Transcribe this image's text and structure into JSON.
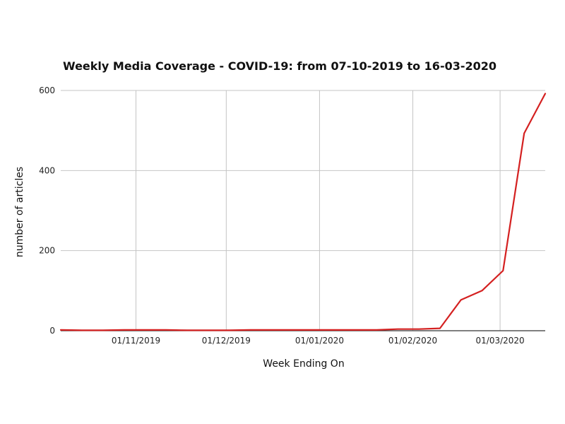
{
  "chart_data": {
    "type": "line",
    "title": "Weekly Media Coverage - COVID-19: from 07-10-2019 to 16-03-2020",
    "xlabel": "Week Ending On",
    "ylabel": "number of articles",
    "x_type": "date",
    "xlim": [
      "2019-10-07",
      "2020-03-16"
    ],
    "ylim": [
      0,
      600
    ],
    "y_ticks": [
      0,
      200,
      400,
      600
    ],
    "x_ticks": [
      "2019-11-01",
      "2019-12-01",
      "2020-01-01",
      "2020-02-01",
      "2020-03-01"
    ],
    "x_tick_labels": [
      "01/11/2019",
      "01/12/2019",
      "01/01/2020",
      "01/02/2020",
      "01/03/2020"
    ],
    "grid": true,
    "legend": "none",
    "series": [
      {
        "color": "#d42020",
        "x": [
          "2019-10-07",
          "2019-10-14",
          "2019-10-21",
          "2019-10-28",
          "2019-11-04",
          "2019-11-11",
          "2019-11-18",
          "2019-11-25",
          "2019-12-02",
          "2019-12-09",
          "2019-12-16",
          "2019-12-23",
          "2019-12-30",
          "2020-01-06",
          "2020-01-13",
          "2020-01-20",
          "2020-01-27",
          "2020-02-03",
          "2020-02-10",
          "2020-02-17",
          "2020-02-24",
          "2020-03-02",
          "2020-03-09",
          "2020-03-16"
        ],
        "values": [
          2,
          1,
          1,
          2,
          2,
          2,
          1,
          1,
          1,
          2,
          2,
          2,
          2,
          2,
          2,
          2,
          4,
          4,
          6,
          77,
          100,
          150,
          493,
          592
        ]
      }
    ]
  }
}
